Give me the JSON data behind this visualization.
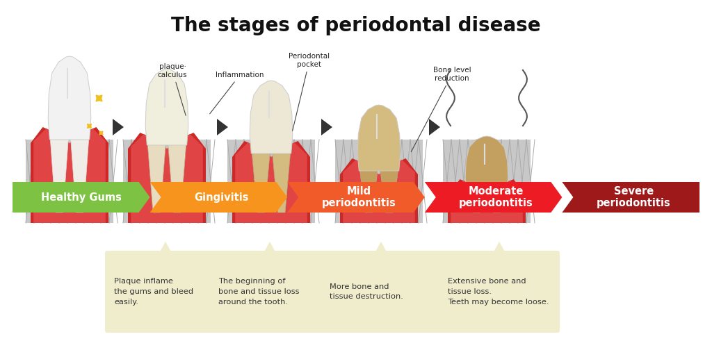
{
  "title": "The stages of periodontal disease",
  "title_fontsize": 20,
  "background_color": "#ffffff",
  "stages": [
    {
      "label": "Healthy Gums",
      "color": "#7dc242"
    },
    {
      "label": "Gingivitis",
      "color": "#f7941d"
    },
    {
      "label": "Mild\nperiodontitis",
      "color": "#f15a29"
    },
    {
      "label": "Moderate\nperiodontitis",
      "color": "#ed1c24"
    },
    {
      "label": "Severe\nperiodontitis",
      "color": "#9e1a1a"
    }
  ],
  "descriptions": [
    {
      "text": "Plaque inflame\nthe gums and bleed\neasily."
    },
    {
      "text": "The beginning of\nbone and tissue loss\naround the tooth."
    },
    {
      "text": "More bone and\ntissue destruction."
    },
    {
      "text": "Extensive bone and\ntissue loss.\nTeeth may become loose."
    }
  ],
  "box_color": "#f0edcc",
  "box_text_color": "#333333",
  "arrow_fill": "#333333"
}
